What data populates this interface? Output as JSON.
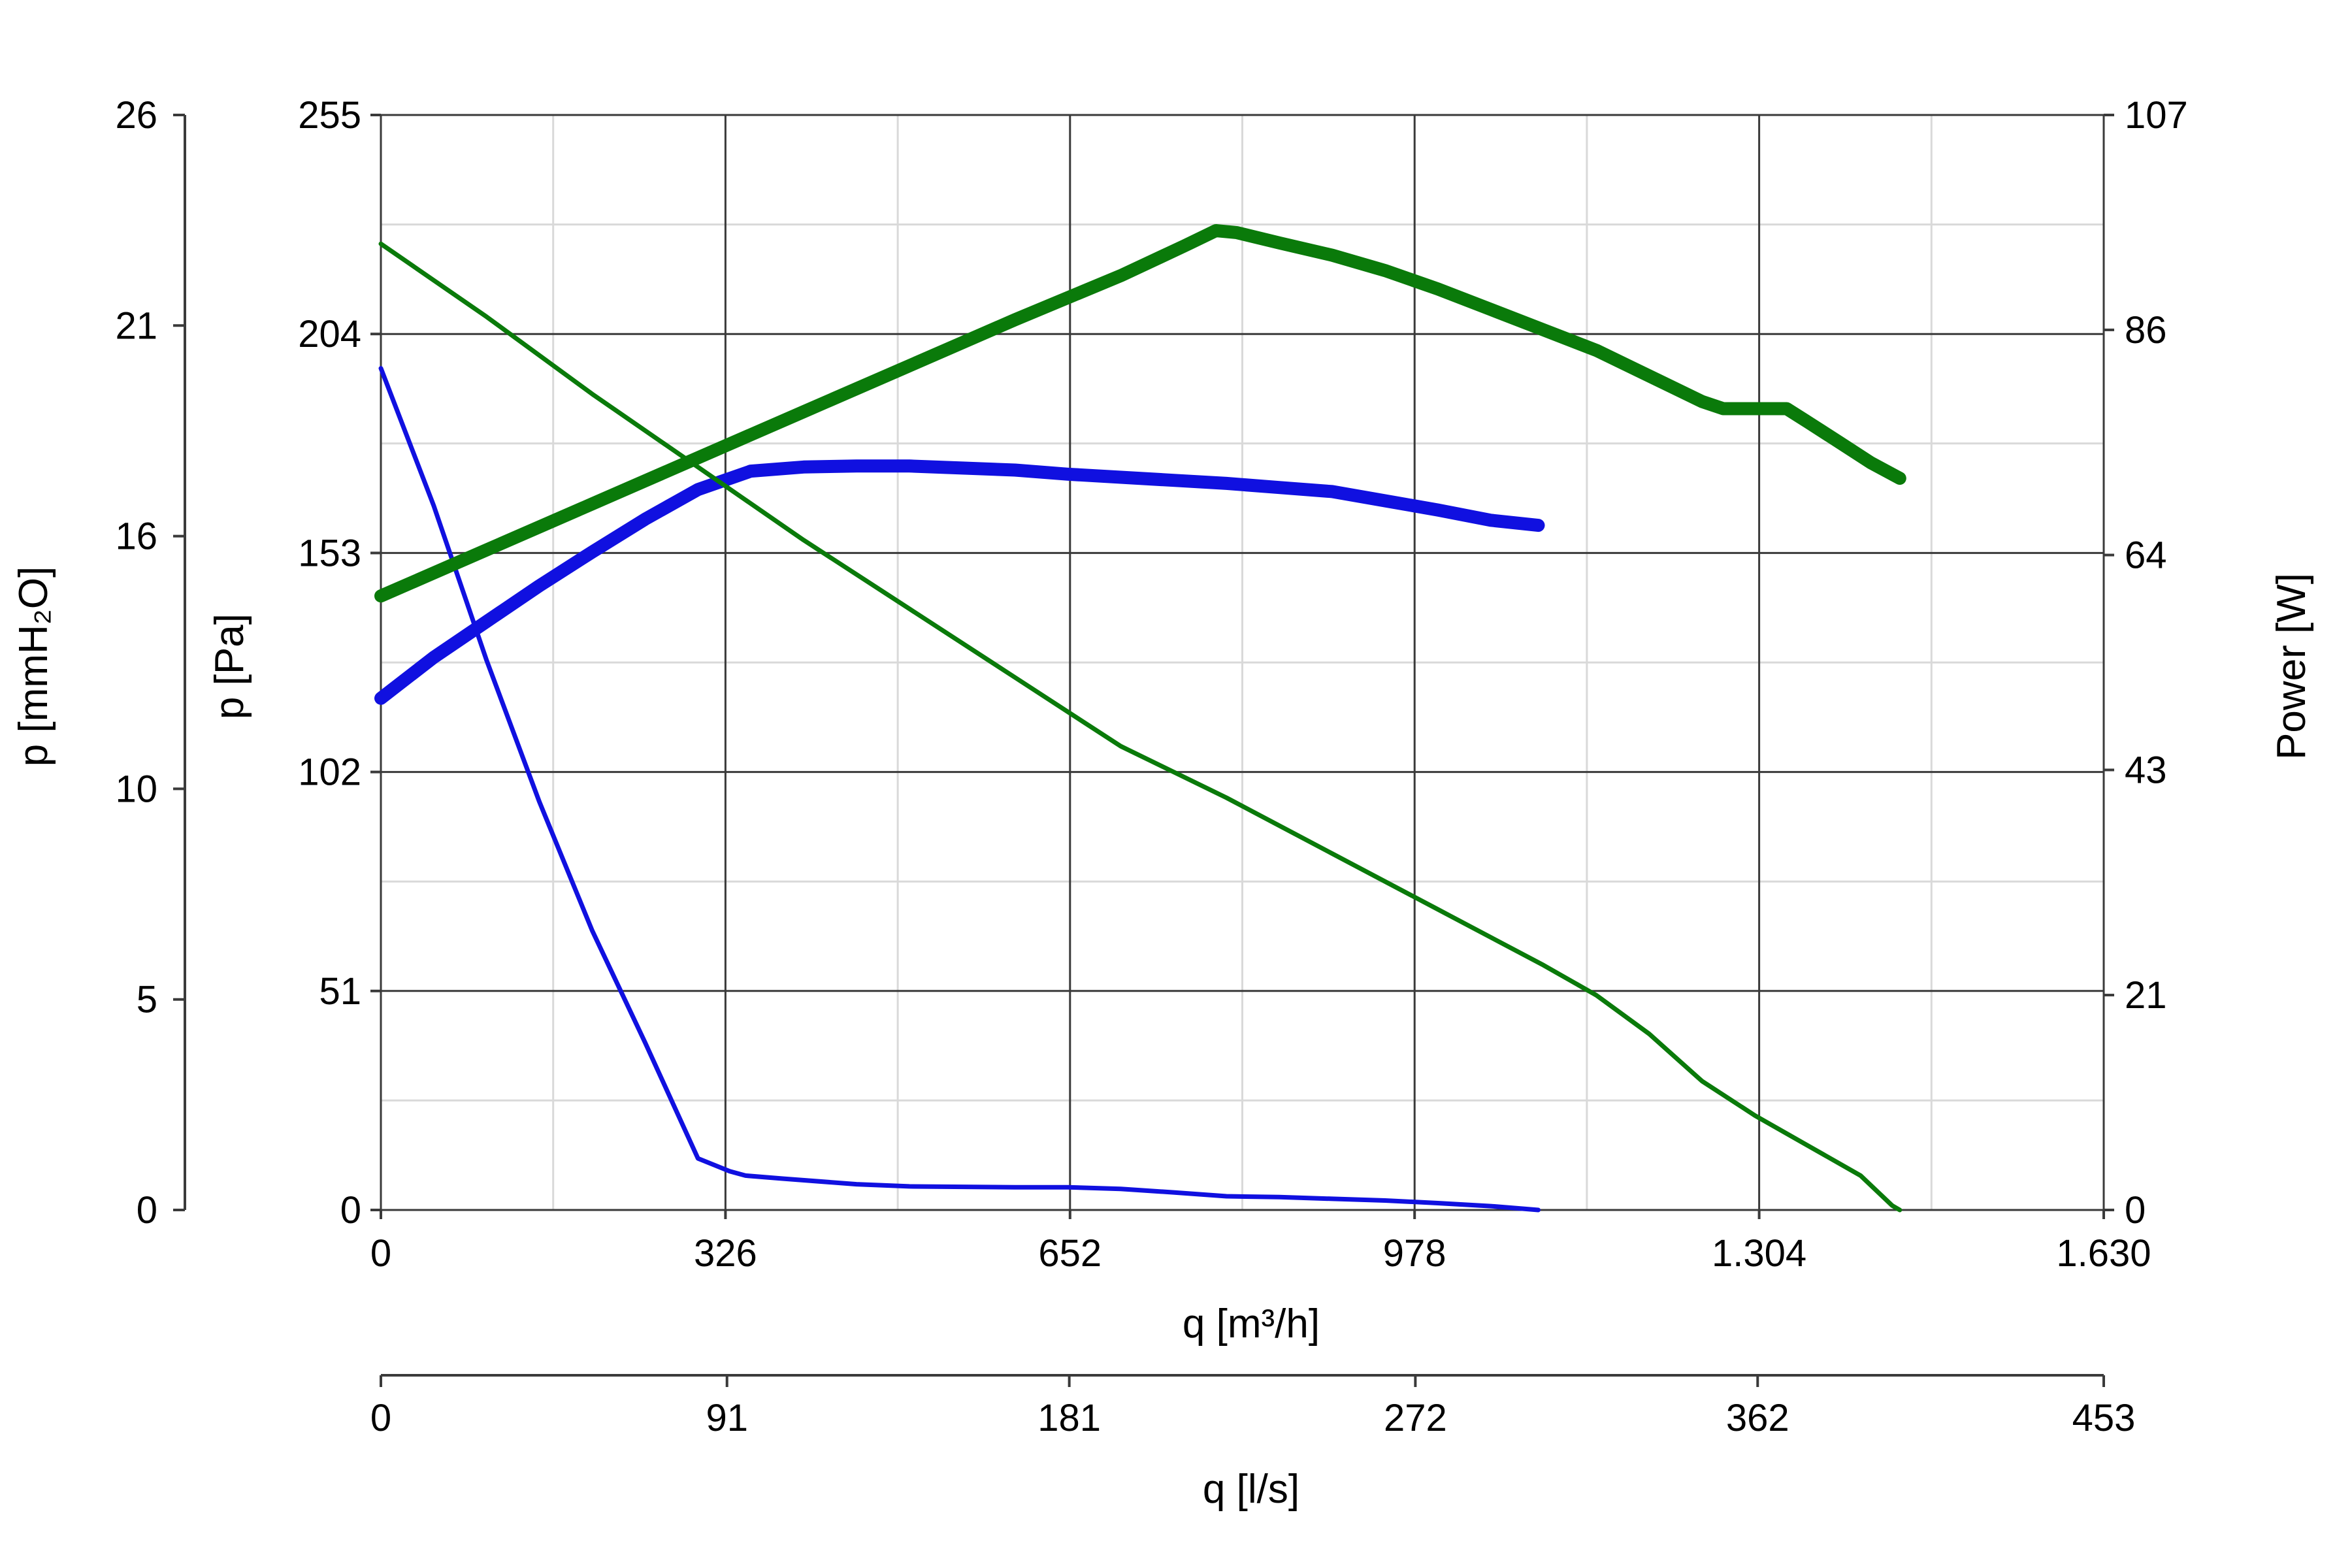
{
  "chart_data": {
    "type": "line",
    "x_axis": {
      "label": "q [m³/h]",
      "range": [
        0,
        1630
      ],
      "ticks": [
        0,
        326,
        652,
        978,
        1304,
        1630
      ],
      "tick_labels": [
        "0",
        "326",
        "652",
        "978",
        "1.304",
        "1.630"
      ]
    },
    "x2_axis": {
      "label": "q [l/s]",
      "range": [
        0,
        453
      ],
      "ticks": [
        0,
        91,
        181,
        272,
        362,
        453
      ],
      "tick_labels": [
        "0",
        "91",
        "181",
        "272",
        "362",
        "453"
      ]
    },
    "y_axis": {
      "label": "p [Pa]",
      "range": [
        0,
        255
      ],
      "ticks": [
        0,
        51,
        102,
        153,
        204,
        255
      ],
      "tick_labels": [
        "0",
        "51",
        "102",
        "153",
        "204",
        "255"
      ]
    },
    "y2_axis": {
      "label": "p [mmH₂O]",
      "range": [
        0,
        26
      ],
      "ticks": [
        0,
        5,
        10,
        16,
        21,
        26
      ],
      "tick_labels": [
        "0",
        "5",
        "10",
        "16",
        "21",
        "26"
      ]
    },
    "y3_axis": {
      "label": "Power [W]",
      "range": [
        0,
        107
      ],
      "ticks": [
        0,
        21,
        43,
        64,
        86,
        107
      ],
      "tick_labels": [
        "0",
        "21",
        "43",
        "64",
        "86",
        "107"
      ]
    },
    "grid": true,
    "series": [
      {
        "axis": "pressure",
        "color": "#1010e0",
        "weight": "thin",
        "points": [
          [
            0,
            196
          ],
          [
            50,
            164
          ],
          [
            100,
            128
          ],
          [
            150,
            95
          ],
          [
            200,
            65
          ],
          [
            250,
            39
          ],
          [
            300,
            12
          ],
          [
            330,
            9
          ],
          [
            345,
            8
          ],
          [
            380,
            7.3
          ],
          [
            450,
            6
          ],
          [
            500,
            5.5
          ],
          [
            600,
            5.3
          ],
          [
            650,
            5.3
          ],
          [
            700,
            4.9
          ],
          [
            750,
            4.1
          ],
          [
            800,
            3.2
          ],
          [
            850,
            3.0
          ],
          [
            900,
            2.6
          ],
          [
            950,
            2.2
          ],
          [
            1000,
            1.6
          ],
          [
            1050,
            0.9
          ],
          [
            1080,
            0.3
          ],
          [
            1095,
            0
          ]
        ]
      },
      {
        "axis": "power",
        "color": "#1010e0",
        "weight": "thick",
        "points": [
          [
            0,
            50
          ],
          [
            50,
            54
          ],
          [
            100,
            57.5
          ],
          [
            150,
            61
          ],
          [
            200,
            64.3
          ],
          [
            250,
            67.5
          ],
          [
            300,
            70.4
          ],
          [
            350,
            72.2
          ],
          [
            400,
            72.6
          ],
          [
            450,
            72.7
          ],
          [
            500,
            72.7
          ],
          [
            550,
            72.5
          ],
          [
            600,
            72.3
          ],
          [
            650,
            71.9
          ],
          [
            700,
            71.6
          ],
          [
            750,
            71.3
          ],
          [
            800,
            71.0
          ],
          [
            850,
            70.6
          ],
          [
            900,
            70.2
          ],
          [
            950,
            69.3
          ],
          [
            1000,
            68.4
          ],
          [
            1050,
            67.4
          ],
          [
            1095,
            66.9
          ]
        ]
      },
      {
        "axis": "pressure",
        "color": "#0a7a0a",
        "weight": "thin",
        "points": [
          [
            0,
            225
          ],
          [
            100,
            208
          ],
          [
            200,
            190
          ],
          [
            300,
            173
          ],
          [
            400,
            156
          ],
          [
            500,
            140
          ],
          [
            600,
            124
          ],
          [
            700,
            108
          ],
          [
            800,
            96
          ],
          [
            900,
            83
          ],
          [
            1000,
            70
          ],
          [
            1100,
            57
          ],
          [
            1150,
            50
          ],
          [
            1200,
            41
          ],
          [
            1250,
            30
          ],
          [
            1300,
            22
          ],
          [
            1350,
            15
          ],
          [
            1400,
            8
          ],
          [
            1430,
            1
          ],
          [
            1437,
            0
          ]
        ]
      },
      {
        "axis": "power",
        "color": "#0a7a0a",
        "weight": "thick",
        "points": [
          [
            0,
            60
          ],
          [
            100,
            64.5
          ],
          [
            200,
            69
          ],
          [
            300,
            73.5
          ],
          [
            400,
            78
          ],
          [
            500,
            82.5
          ],
          [
            600,
            87
          ],
          [
            700,
            91.3
          ],
          [
            760,
            94.2
          ],
          [
            790,
            95.7
          ],
          [
            810,
            95.5
          ],
          [
            850,
            94.5
          ],
          [
            900,
            93.3
          ],
          [
            950,
            91.8
          ],
          [
            1000,
            90
          ],
          [
            1050,
            88
          ],
          [
            1100,
            86
          ],
          [
            1150,
            84
          ],
          [
            1190,
            82
          ],
          [
            1250,
            79
          ],
          [
            1270,
            78.3
          ],
          [
            1300,
            78.3
          ],
          [
            1330,
            78.3
          ],
          [
            1350,
            77
          ],
          [
            1380,
            75
          ],
          [
            1410,
            73
          ],
          [
            1437,
            71.5
          ]
        ]
      }
    ]
  }
}
